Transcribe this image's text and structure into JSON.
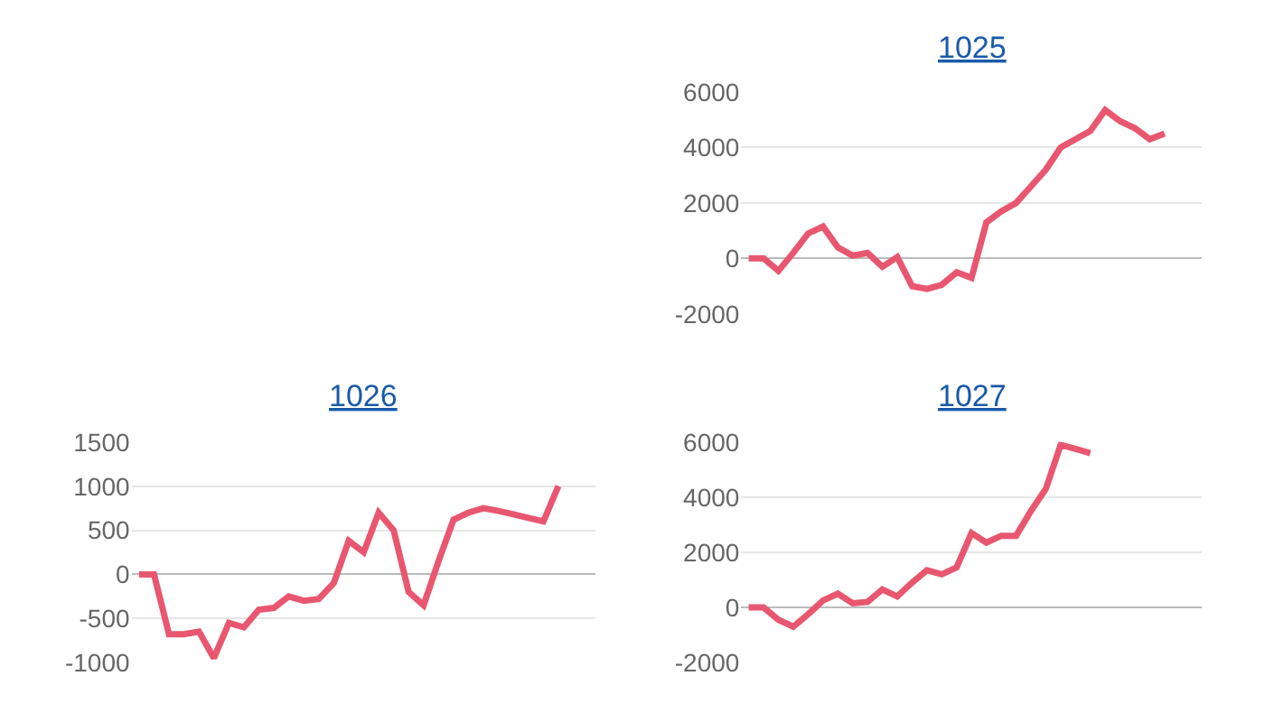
{
  "chart_data": [
    {
      "type": "line",
      "title": "1025",
      "categories": [
        null,
        null,
        null,
        null,
        null,
        null,
        null,
        null,
        null,
        null,
        null,
        null,
        null,
        null,
        null,
        null,
        null,
        null,
        null,
        null,
        null,
        null,
        null,
        null,
        null,
        null,
        null,
        null,
        null,
        null,
        null
      ],
      "values": [
        0,
        0,
        -450,
        200,
        900,
        1150,
        400,
        100,
        200,
        -300,
        50,
        -1000,
        -1100,
        -950,
        -500,
        -700,
        1300,
        1700,
        2000,
        2600,
        3200,
        4000,
        4300,
        4600,
        5350,
        4950,
        4700,
        4300,
        4500,
        null,
        null
      ],
      "color": "#e8576f",
      "ylim": [
        -2000,
        6000
      ],
      "yticks": [
        -2000,
        0,
        2000,
        4000,
        6000
      ],
      "grid": "y"
    },
    {
      "type": "line",
      "title": "1026",
      "categories": [
        null,
        null,
        null,
        null,
        null,
        null,
        null,
        null,
        null,
        null,
        null,
        null,
        null,
        null,
        null,
        null,
        null,
        null,
        null,
        null,
        null,
        null,
        null,
        null,
        null,
        null,
        null,
        null,
        null,
        null,
        null
      ],
      "values": [
        0,
        0,
        -680,
        -680,
        -650,
        -950,
        -550,
        -600,
        -400,
        -380,
        -250,
        -300,
        -280,
        -100,
        380,
        250,
        700,
        500,
        -200,
        -350,
        150,
        620,
        700,
        750,
        720,
        680,
        640,
        600,
        1000,
        null,
        null
      ],
      "color": "#e8576f",
      "ylim": [
        -1000,
        1500
      ],
      "yticks": [
        -1000,
        -500,
        0,
        500,
        1000,
        1500
      ],
      "grid": "y"
    },
    {
      "type": "line",
      "title": "1027",
      "categories": [
        null,
        null,
        null,
        null,
        null,
        null,
        null,
        null,
        null,
        null,
        null,
        null,
        null,
        null,
        null,
        null,
        null,
        null,
        null,
        null,
        null,
        null,
        null,
        null,
        null,
        null,
        null,
        null,
        null,
        null,
        null
      ],
      "values": [
        0,
        0,
        -450,
        -700,
        -250,
        250,
        500,
        150,
        200,
        650,
        400,
        900,
        1350,
        1200,
        1450,
        2700,
        2350,
        2600,
        2600,
        3500,
        4300,
        5900,
        5750,
        5600,
        null,
        null,
        null,
        null,
        null,
        null,
        null
      ],
      "color": "#e8576f",
      "ylim": [
        -2000,
        6000
      ],
      "yticks": [
        -2000,
        0,
        2000,
        4000,
        6000
      ],
      "grid": "y"
    }
  ]
}
